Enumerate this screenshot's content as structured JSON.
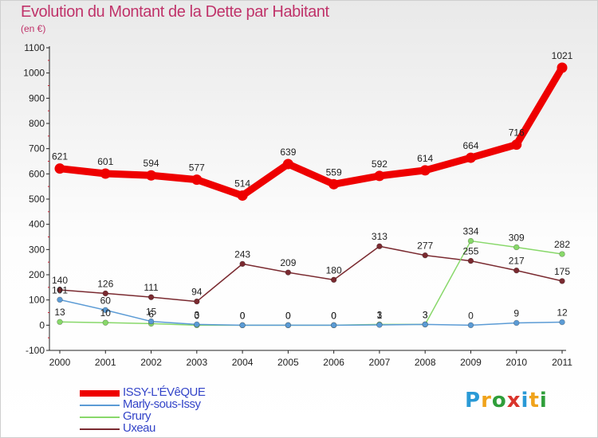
{
  "title": "Evolution du Montant de la Dette par Habitant",
  "subtitle": "(en €)",
  "logo": {
    "text": "Proxiti",
    "colors": [
      "#2a9ad6",
      "#f0a31b",
      "#2f9e3a",
      "#d9342b",
      "#2a9ad6",
      "#f0a31b",
      "#2f9e3a"
    ]
  },
  "chart_data": {
    "type": "line",
    "x": [
      "2000",
      "2001",
      "2002",
      "2003",
      "2004",
      "2005",
      "2006",
      "2007",
      "2008",
      "2009",
      "2010",
      "2011"
    ],
    "ylim": [
      -100,
      1100
    ],
    "yticks": [
      -100,
      0,
      100,
      200,
      300,
      400,
      500,
      600,
      700,
      800,
      900,
      1000,
      1100
    ],
    "grid": false,
    "legend_position": "bottom-left",
    "series": [
      {
        "name": "ISSY-L'ÉVêQUE",
        "color": "#ee0000",
        "values": [
          621,
          601,
          594,
          577,
          514,
          639,
          559,
          592,
          614,
          664,
          716,
          1021
        ],
        "labels": [
          "621",
          "601",
          "594",
          "577",
          "514",
          "639",
          "559",
          "592",
          "614",
          "664",
          "716",
          "1021"
        ]
      },
      {
        "name": "Marly-sous-Issy",
        "color": "#5b9bd5",
        "values": [
          101,
          60,
          15,
          3,
          0,
          0,
          0,
          1,
          3,
          0,
          9,
          12
        ],
        "labels": [
          "101",
          "60",
          "15",
          "3",
          "0",
          "0",
          "0",
          "1",
          "3",
          "0",
          "9",
          "12"
        ]
      },
      {
        "name": "Grury",
        "color": "#88d86a",
        "values": [
          13,
          10,
          6,
          0,
          0,
          0,
          0,
          3,
          3,
          334,
          309,
          282
        ],
        "labels": [
          "13",
          "10",
          "6",
          "0",
          "0",
          "0",
          "0",
          "3",
          "3",
          "334",
          "309",
          "282"
        ]
      },
      {
        "name": "Uxeau",
        "color": "#7a2a30",
        "values": [
          140,
          126,
          111,
          94,
          243,
          209,
          180,
          313,
          277,
          255,
          217,
          175
        ],
        "labels": [
          "140",
          "126",
          "111",
          "94",
          "243",
          "209",
          "180",
          "313",
          "277",
          "255",
          "217",
          "175"
        ]
      }
    ]
  }
}
